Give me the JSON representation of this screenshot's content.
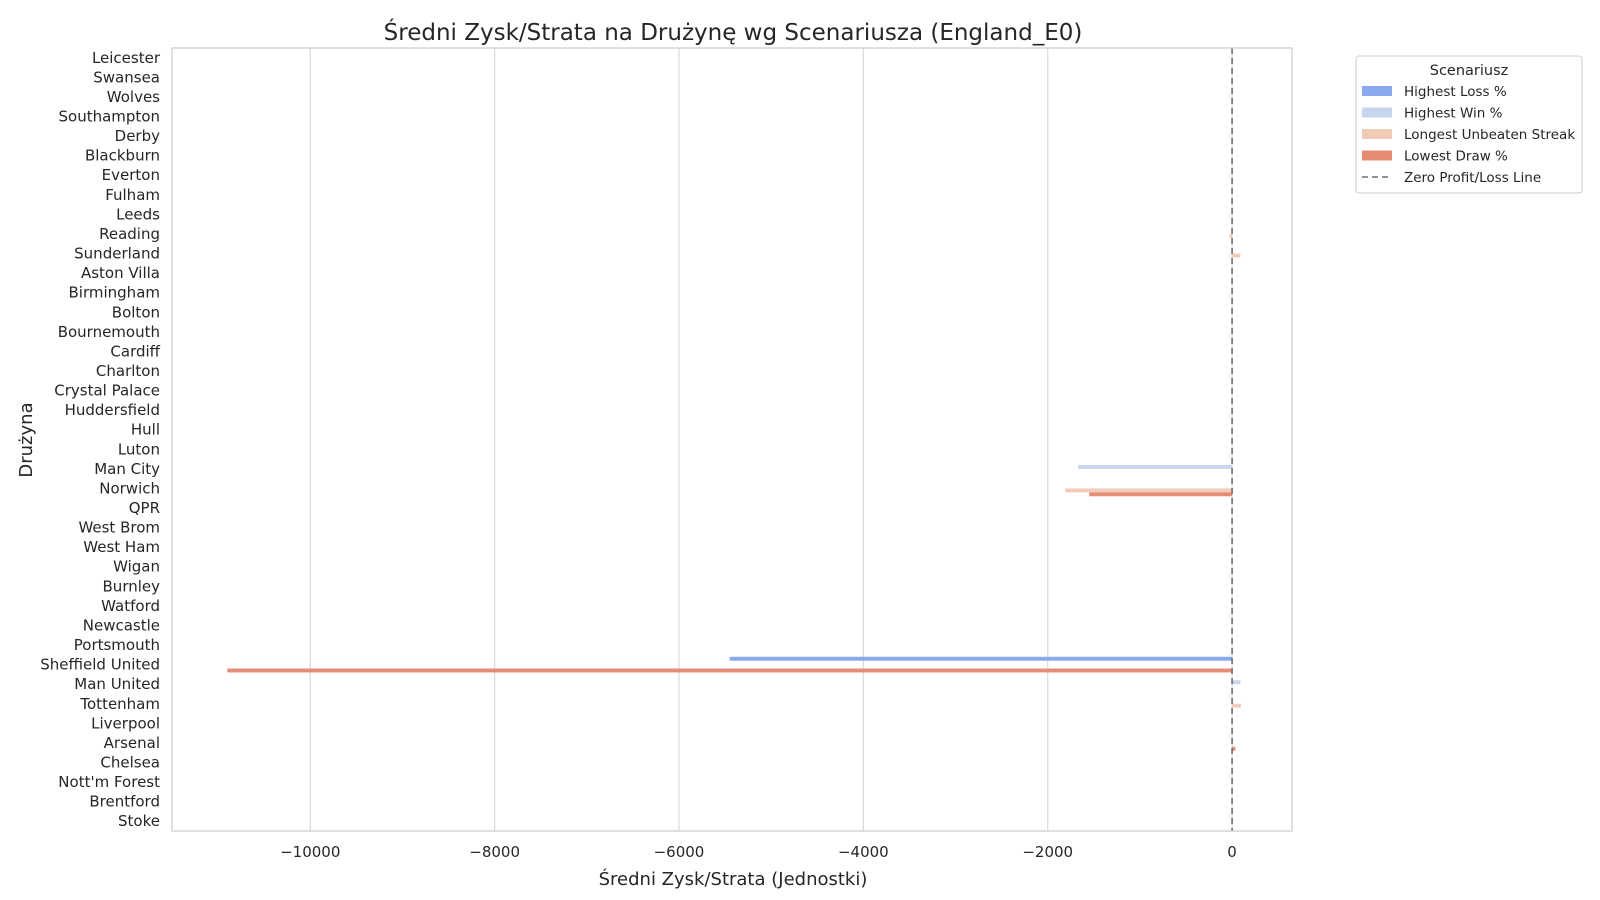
{
  "chart_data": {
    "type": "bar",
    "orientation": "horizontal",
    "title": "Średni Zysk/Strata na Drużynę wg Scenariusza (England_E0)",
    "xlabel": "Średni Zysk/Strata (Jednostki)",
    "ylabel": "Drużyna",
    "xlim": [
      -11500,
      650
    ],
    "x_ticks": [
      -10000,
      -8000,
      -6000,
      -4000,
      -2000,
      0
    ],
    "x_tick_labels": [
      "−10000",
      "−8000",
      "−6000",
      "−4000",
      "−2000",
      "0"
    ],
    "grid": "vertical",
    "reference_line": {
      "value": 0,
      "label": "Zero Profit/Loss Line",
      "color": "#6e6e6e",
      "style": "dashed"
    },
    "legend": {
      "title": "Scenariusz",
      "placement": "outside-top-right"
    },
    "categories": [
      "Leicester",
      "Swansea",
      "Wolves",
      "Southampton",
      "Derby",
      "Blackburn",
      "Everton",
      "Fulham",
      "Leeds",
      "Reading",
      "Sunderland",
      "Aston Villa",
      "Birmingham",
      "Bolton",
      "Bournemouth",
      "Cardiff",
      "Charlton",
      "Crystal Palace",
      "Huddersfield",
      "Hull",
      "Luton",
      "Man City",
      "Norwich",
      "QPR",
      "West Brom",
      "West Ham",
      "Wigan",
      "Burnley",
      "Watford",
      "Newcastle",
      "Portsmouth",
      "Sheffield United",
      "Man United",
      "Tottenham",
      "Liverpool",
      "Arsenal",
      "Chelsea",
      "Nott'm Forest",
      "Brentford",
      "Stoke"
    ],
    "series": [
      {
        "name": "Highest Loss %",
        "color": "#8aa8f0",
        "values": [
          null,
          null,
          null,
          null,
          null,
          null,
          null,
          null,
          null,
          null,
          null,
          null,
          null,
          null,
          null,
          null,
          null,
          null,
          null,
          null,
          null,
          null,
          null,
          null,
          null,
          null,
          null,
          null,
          null,
          null,
          null,
          -5450,
          null,
          null,
          null,
          null,
          null,
          null,
          null,
          null
        ]
      },
      {
        "name": "Highest Win %",
        "color": "#c8d5ef",
        "values": [
          null,
          null,
          null,
          null,
          null,
          null,
          null,
          null,
          null,
          null,
          null,
          null,
          null,
          null,
          null,
          null,
          null,
          null,
          null,
          null,
          null,
          -1670,
          null,
          null,
          null,
          null,
          null,
          null,
          null,
          null,
          null,
          null,
          90,
          null,
          null,
          null,
          null,
          null,
          null,
          null
        ]
      },
      {
        "name": "Longest Unbeaten Streak",
        "color": "#f0cbb8",
        "values": [
          null,
          null,
          null,
          null,
          null,
          null,
          null,
          null,
          null,
          -30,
          90,
          null,
          null,
          null,
          null,
          null,
          null,
          null,
          null,
          null,
          null,
          null,
          -1810,
          null,
          null,
          null,
          null,
          null,
          null,
          null,
          null,
          null,
          null,
          95,
          null,
          null,
          null,
          null,
          null,
          null
        ]
      },
      {
        "name": "Lowest Draw %",
        "color": "#e58c75",
        "values": [
          null,
          null,
          null,
          null,
          null,
          null,
          null,
          null,
          null,
          null,
          null,
          null,
          null,
          null,
          null,
          null,
          null,
          null,
          null,
          null,
          null,
          null,
          -1550,
          null,
          null,
          null,
          null,
          null,
          null,
          null,
          null,
          -10900,
          null,
          null,
          null,
          35,
          null,
          null,
          null,
          null
        ]
      }
    ]
  }
}
